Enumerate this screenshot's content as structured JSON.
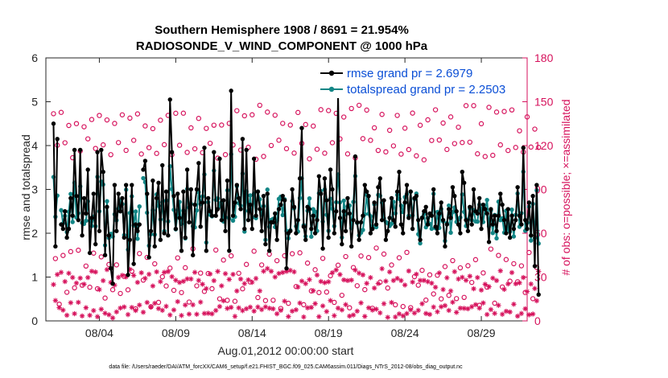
{
  "chart_data": {
    "type": "line",
    "title_line1": "Southern Hemisphere 1908 / 8691 = 21.954%",
    "title_line2": "RADIOSONDE_V_WIND_COMPONENT @ 1000 hPa",
    "xlabel": "Aug.01,2012 00:00:00 start",
    "ylabel_left": "rmse and totalspread",
    "ylabel_right": "# of obs: o=possible; ×=assimilated",
    "footnote": "data file: /Users/raeder/DAI/ATM_forcXX/CAM6_setup/f.e21.FHIST_BGC.f09_025.CAM6assim.011/Diags_NTrS_2012-08/obs_diag_output.nc",
    "xlim_days": [
      0.5,
      32
    ],
    "x_ticks": [
      {
        "day": 4,
        "label": "08/04"
      },
      {
        "day": 9,
        "label": "08/09"
      },
      {
        "day": 14,
        "label": "08/14"
      },
      {
        "day": 19,
        "label": "08/19"
      },
      {
        "day": 24,
        "label": "08/24"
      },
      {
        "day": 29,
        "label": "08/29"
      }
    ],
    "ylim_left": [
      0,
      6
    ],
    "yticks_left": [
      "0",
      "1",
      "2",
      "3",
      "4",
      "5",
      "6"
    ],
    "ylim_right": [
      0,
      180
    ],
    "yticks_right": [
      "0",
      "30",
      "60",
      "90",
      "120",
      "150",
      "180"
    ],
    "legend": {
      "rmse": "rmse grand pr = 2.6979",
      "spread": "totalspread grand pr = 2.2503",
      "position": "top-right"
    },
    "colors": {
      "rmse": "#000000",
      "spread": "#138686",
      "obs": "#d6125c",
      "legend_text": "#0b4fd6"
    },
    "series": [
      {
        "name": "rmse",
        "values": [
          4.5,
          1.7,
          4.15,
          null,
          2.2,
          2.1,
          2.5,
          1.9,
          2.1,
          2.8,
          2.4,
          3.9,
          2.85,
          2.3,
          3.9,
          1.95,
          2.8,
          2.45,
          3.45,
          1.55,
          2.35,
          2.9,
          1.75,
          3.85,
          2.05,
          3.9,
          3.4,
          1.5,
          2.6,
          1.95,
          1.2,
          0.85,
          3.1,
          2.05,
          2.9,
          2.5,
          2.8,
          1.9,
          3.1,
          1.05,
          1.85,
          3.1,
          1.3,
          2.2,
          2.05,
          2.2,
          null,
          3.45,
          3.65,
          2.9,
          1.45,
          2.05,
          3.2,
          1.7,
          2.8,
          3.15,
          1.85,
          3.55,
          2.0,
          2.95,
          1.95,
          5.05,
          3.85,
          2.85,
          2.1,
          2.9,
          2.35,
          1.6,
          2.95,
          1.9,
          3.45,
          2.25,
          3.0,
          1.5,
          2.65,
          3.0,
          3.6,
          2.15,
          2.7,
          3.95,
          1.6,
          2.8,
          2.5,
          2.4,
          3.85,
          2.4,
          2.55,
          3.7,
          2.3,
          2.75,
          2.05,
          3.2,
          1.6,
          5.25,
          2.4,
          2.7,
          3.1,
          2.8,
          2.55,
          4.15,
          2.1,
          3.9,
          2.3,
          2.65,
          2.1,
          3.7,
          2.4,
          2.95,
          2.55,
          2.05,
          2.85,
          1.75,
          2.9,
          1.6,
          2.25,
          2.25,
          2.45,
          1.85,
          2.55,
          2.65,
          2.85,
          2.75,
          1.2,
          2.0,
          2.05,
          3.0,
          2.6,
          2.0,
          2.3,
          3.25,
          4.4,
          2.15,
          1.85,
          2.6,
          2.55,
          2.1,
          2.4,
          2.0,
          2.3,
          3.3,
          2.9,
          1.65,
          3.25,
          2.75,
          1.9,
          3.45,
          3.0,
          2.0,
          2.5,
          5.15,
          2.35,
          1.75,
          2.5,
          2.05,
          2.8,
          2.45,
          1.7,
          2.3,
          3.75,
          2.25,
          1.85,
          2.25,
          2.4,
          3.1,
          2.95,
          2.85,
          2.0,
          2.1,
          2.7,
          2.2,
          3.05,
          3.25,
          2.3,
          2.75,
          1.85,
          2.05,
          2.35,
          2.8,
          2.3,
          2.15,
          2.95,
          3.4,
          2.2,
          2.0,
          2.7,
          3.1,
          2.35,
          2.95,
          2.1,
          2.8,
          2.85,
          2.3,
          1.85,
          2.35,
          2.5,
          2.6,
          2.2,
          2.45,
          2.4,
          3.0,
          2.15,
          2.0,
          2.45,
          2.7,
          2.3,
          1.7,
          2.2,
          2.55,
          2.35,
          3.05,
          2.85,
          2.5,
          2.2,
          2.0,
          3.4,
          3.15,
          2.3,
          2.05,
          2.6,
          2.2,
          3.0,
          2.5,
          2.45,
          2.8,
          2.1,
          2.65,
          2.55,
          2.45,
          1.8,
          2.55,
          2.2,
          2.4,
          2.05,
          2.4,
          2.9,
          2.65,
          2.3,
          2.0,
          2.55,
          1.9,
          2.4,
          2.1,
          2.3,
          3.05,
          2.4,
          2.2,
          3.95,
          2.3,
          2.1,
          2.7,
          1.95,
          2.85,
          1.25,
          3.1,
          0.6
        ],
        "t_start_day": 1.0,
        "t_step_day": 0.125
      }
    ]
  }
}
